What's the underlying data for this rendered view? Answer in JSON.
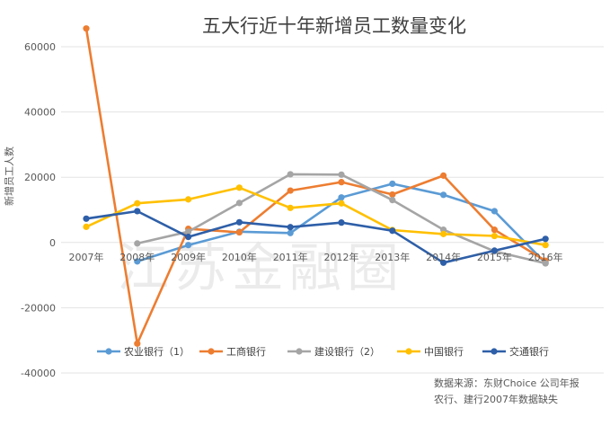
{
  "chart_data": {
    "type": "line",
    "title": "五大行近十年新增员工数量变化",
    "xlabel": "",
    "ylabel": "新增员工人数",
    "ylim": [
      -40000,
      60000
    ],
    "yticks": [
      60000,
      40000,
      20000,
      0,
      -20000,
      -40000
    ],
    "categories": [
      "2007年",
      "2008年",
      "2009年",
      "2010年",
      "2011年",
      "2012年",
      "2013年",
      "2014年",
      "2015年",
      "2016年"
    ],
    "series": [
      {
        "name": "农业银行（1）",
        "color": "#5b9bd5",
        "values": [
          null,
          -5800,
          -800,
          3300,
          2900,
          13800,
          18000,
          14600,
          9600,
          -6300
        ]
      },
      {
        "name": "工商银行",
        "color": "#ed7d31",
        "values": [
          65600,
          -31000,
          4200,
          3100,
          15900,
          18500,
          14700,
          20500,
          3900,
          -5600
        ]
      },
      {
        "name": "建设银行（2）",
        "color": "#a5a5a5",
        "values": [
          null,
          -300,
          3300,
          12100,
          20900,
          20800,
          13000,
          3900,
          -2700,
          -6400
        ]
      },
      {
        "name": "中国银行",
        "color": "#ffc000",
        "values": [
          4800,
          12000,
          13200,
          16800,
          10600,
          12000,
          3800,
          2600,
          2000,
          -800
        ]
      },
      {
        "name": "交通银行",
        "color": "#2e5fa8",
        "values": [
          7300,
          9600,
          1700,
          6200,
          4700,
          6100,
          3600,
          -6200,
          -2500,
          1100
        ]
      }
    ],
    "grid": true,
    "legend_position": "bottom"
  },
  "source": {
    "line1": "数据来源：东财Choice 公司年报",
    "line2": "农行、建行2007年数据缺失"
  },
  "watermark": "江苏金融圈"
}
